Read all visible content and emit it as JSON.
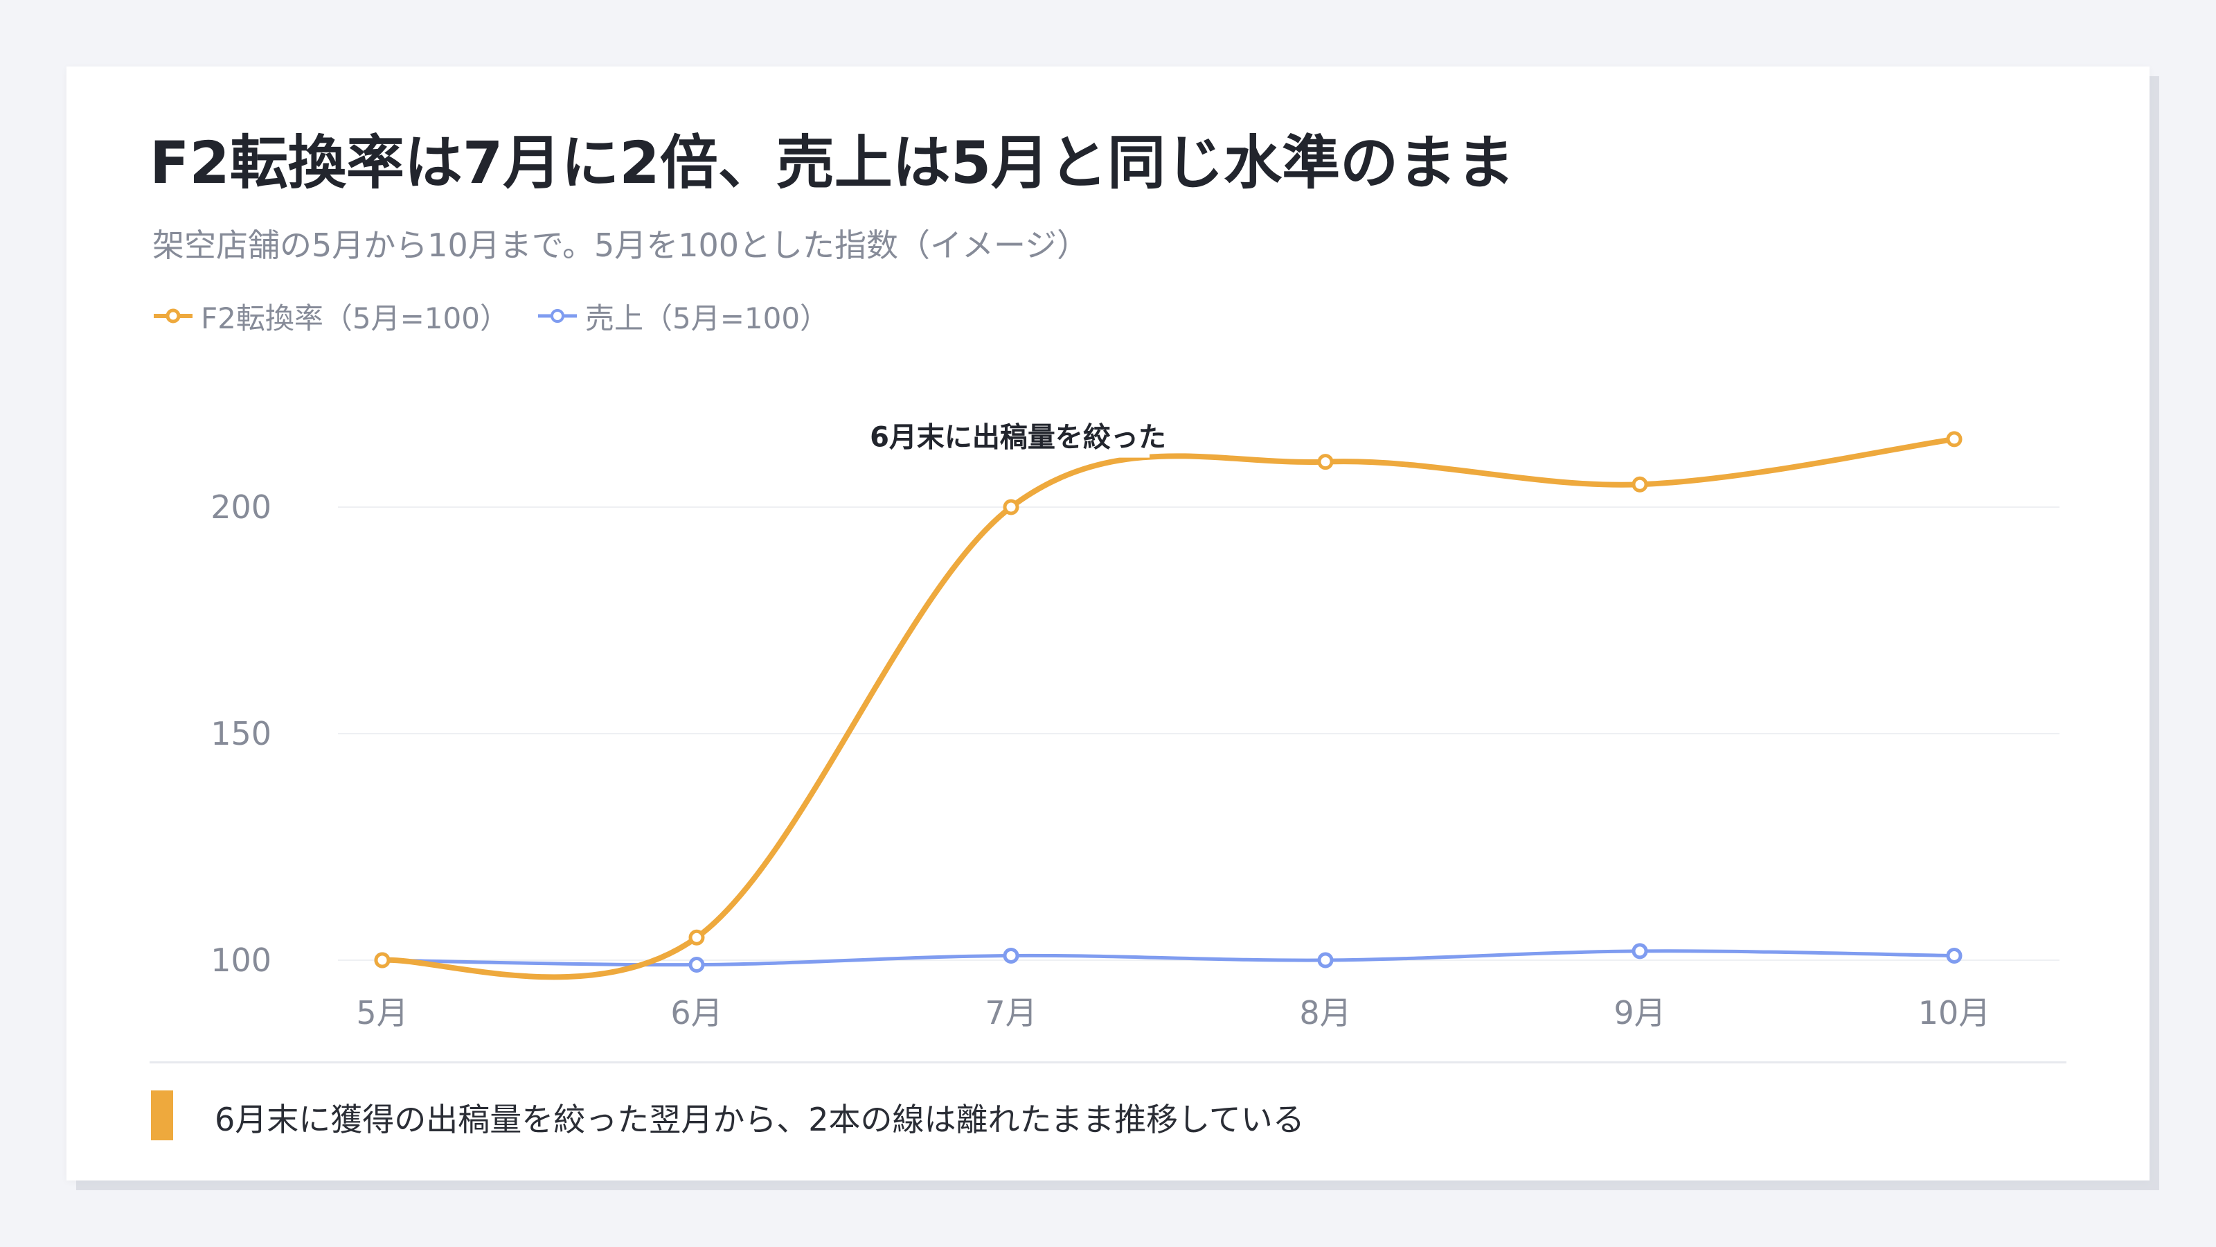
{
  "title": "F2転換率は7月に2倍、売上は5月と同じ水準のまま",
  "subtitle": "架空店舗の5月から10月まで。5月を100とした指数（イメージ）",
  "footer_note": "6月末に獲得の出稿量を絞った翌月から、2本の線は離れたまま推移している",
  "colors": {
    "f2": "#eea93d",
    "sales": "#7f9cf0",
    "grid": "#eef0f3",
    "tick": "#868b98",
    "accent": "#eea93d"
  },
  "chart_data": {
    "type": "line",
    "categories": [
      "5月",
      "6月",
      "7月",
      "8月",
      "9月",
      "10月"
    ],
    "series": [
      {
        "name": "F2転換率（5月=100）",
        "values": [
          100,
          105,
          200,
          210,
          205,
          215
        ]
      },
      {
        "name": "売上（5月=100）",
        "values": [
          100,
          99,
          101,
          100,
          102,
          101
        ]
      }
    ],
    "yticks": [
      100,
      150,
      200
    ],
    "ylim": [
      95,
      225
    ],
    "grid": true,
    "legend": "top-left",
    "annotation": {
      "text": "6月末に出稿量を絞った",
      "category": "7月",
      "value": 210
    }
  }
}
